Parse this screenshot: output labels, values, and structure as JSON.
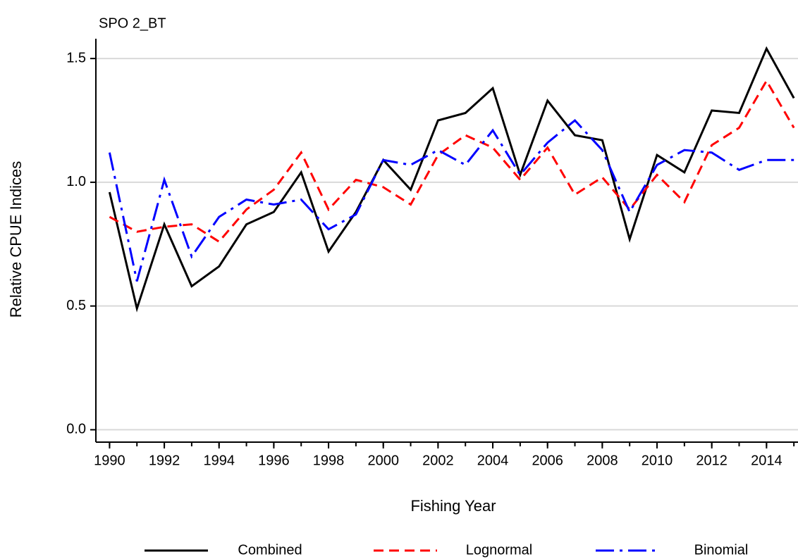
{
  "chart_data": {
    "type": "line",
    "title": "SPO 2_BT",
    "x_label": "Fishing Year",
    "y_label": "Relative CPUE Indices",
    "x": [
      1990,
      1991,
      1992,
      1993,
      1994,
      1995,
      1996,
      1997,
      1998,
      1999,
      2000,
      2001,
      2002,
      2003,
      2004,
      2005,
      2006,
      2007,
      2008,
      2009,
      2010,
      2011,
      2012,
      2013,
      2014,
      2015
    ],
    "series": [
      {
        "name": "Combined",
        "color": "#000000",
        "dash": "solid",
        "values": [
          0.96,
          0.49,
          0.83,
          0.58,
          0.66,
          0.83,
          0.88,
          1.04,
          0.72,
          0.88,
          1.09,
          0.97,
          1.25,
          1.28,
          1.38,
          1.03,
          1.33,
          1.19,
          1.17,
          0.77,
          1.11,
          1.04,
          1.29,
          1.28,
          1.54,
          1.34
        ]
      },
      {
        "name": "Lognormal",
        "color": "#ff0000",
        "dash": "dashed",
        "values": [
          0.86,
          0.8,
          0.82,
          0.83,
          0.76,
          0.89,
          0.97,
          1.12,
          0.89,
          1.01,
          0.98,
          0.91,
          1.11,
          1.19,
          1.14,
          1.01,
          1.14,
          0.95,
          1.02,
          0.89,
          1.03,
          0.92,
          1.15,
          1.22,
          1.41,
          1.22
        ]
      },
      {
        "name": "Binomial",
        "color": "#0000ff",
        "dash": "dashdot",
        "values": [
          1.12,
          0.6,
          1.01,
          0.7,
          0.86,
          0.93,
          0.91,
          0.93,
          0.81,
          0.87,
          1.09,
          1.07,
          1.13,
          1.07,
          1.21,
          1.03,
          1.16,
          1.25,
          1.13,
          0.88,
          1.07,
          1.13,
          1.12,
          1.05,
          1.09,
          1.09
        ]
      }
    ],
    "xlim": [
      1989.5,
      2015.15
    ],
    "ylim": [
      -0.05,
      1.58
    ],
    "xticks": [
      1990,
      1992,
      1994,
      1996,
      1998,
      2000,
      2002,
      2004,
      2006,
      2008,
      2010,
      2012,
      2014
    ],
    "yticks": [
      {
        "value": 0,
        "label": "0.0"
      },
      0.5,
      {
        "value": 1,
        "label": "1.0"
      },
      1.5
    ],
    "grid": true,
    "legend": "bottom"
  }
}
